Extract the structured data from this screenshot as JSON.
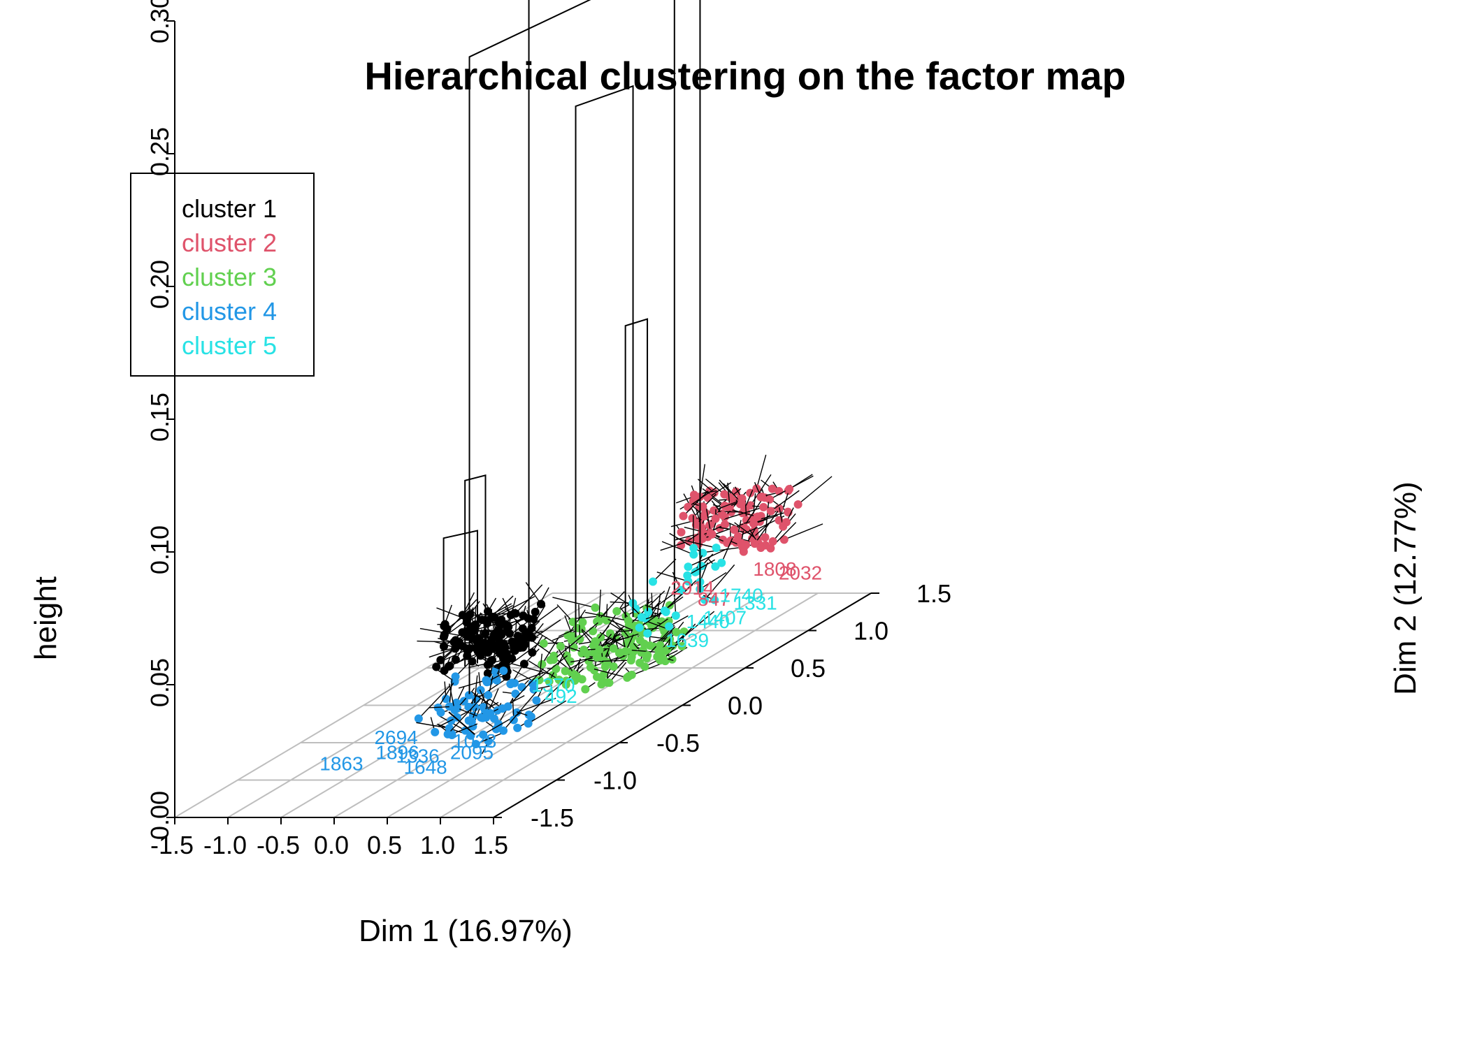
{
  "chart_data": {
    "type": "scatter",
    "subtype": "3d-dendrogram-on-factor-map",
    "title": "Hierarchical clustering on the factor map",
    "xlabel": "Dim 1 (16.97%)",
    "ylabel": "Dim 2 (12.77%)",
    "zlabel": "height",
    "xlim": [
      -1.5,
      1.5
    ],
    "ylim": [
      -1.5,
      1.5
    ],
    "zlim": [
      0,
      0.3
    ],
    "x_ticks": [
      "-1.5",
      "-1.0",
      "-0.5",
      "0.0",
      "0.5",
      "1.0",
      "1.5"
    ],
    "y_ticks": [
      "-1.5",
      "-1.0",
      "-0.5",
      "0.0",
      "0.5",
      "1.0",
      "1.5"
    ],
    "z_ticks": [
      "0.00",
      "0.05",
      "0.10",
      "0.15",
      "0.20",
      "0.25",
      "0.30"
    ],
    "grid": true,
    "legend_position": "top-left",
    "colors": {
      "cluster 1": "#000000",
      "cluster 2": "#DF536B",
      "cluster 3": "#61D04F",
      "cluster 4": "#2297E6",
      "cluster 5": "#28E2E5",
      "grid": "#BEBEBE",
      "tree": "#000000"
    },
    "series": [
      {
        "name": "cluster 1",
        "center": [
          -0.2,
          -0.1
        ],
        "spread": [
          0.35,
          0.18
        ],
        "n": 120
      },
      {
        "name": "cluster 2",
        "center": [
          0.7,
          1.1
        ],
        "spread": [
          0.45,
          0.15
        ],
        "n": 110
      },
      {
        "name": "cluster 3",
        "center": [
          0.55,
          0.25
        ],
        "spread": [
          0.45,
          0.25
        ],
        "n": 140
      },
      {
        "name": "cluster 4",
        "center": [
          0.75,
          -1.0
        ],
        "spread": [
          0.35,
          0.25
        ],
        "n": 70
      },
      {
        "name": "cluster 5",
        "center": [
          1.25,
          0.1
        ],
        "spread": [
          0.15,
          0.35
        ],
        "n": 30
      }
    ],
    "merges": [
      {
        "left": [
          0.08,
          -0.02
        ],
        "right": [
          0.72,
          0.8
        ],
        "height": 0.3
      },
      {
        "left": [
          0.16,
          -0.56
        ],
        "right": [
          0.55,
          0.74
        ],
        "height": 0.26
      },
      {
        "left": [
          0.26,
          0.2
        ],
        "right": [
          0.48,
          0.47
        ],
        "height": 0.22
      },
      {
        "left": [
          0.42,
          0.46
        ],
        "right": [
          0.52,
          0.55
        ],
        "height": 0.13
      },
      {
        "left": [
          -0.32,
          -0.19
        ],
        "right": [
          -0.21,
          -0.12
        ],
        "height": 0.09
      },
      {
        "left": [
          -0.45,
          -0.25
        ],
        "right": [
          -0.25,
          -0.15
        ],
        "height": 0.07
      },
      {
        "left": [
          0.25,
          -0.8
        ],
        "right": [
          0.85,
          -1.1
        ],
        "height": 0.02
      }
    ],
    "point_labels": [
      {
        "text": "2914",
        "x": 0.47,
        "y": 0.95,
        "series": "cluster 2"
      },
      {
        "text": "1808",
        "x": 0.95,
        "y": 1.2,
        "series": "cluster 2"
      },
      {
        "text": "2032",
        "x": 1.25,
        "y": 1.15,
        "series": "cluster 2"
      },
      {
        "text": "847",
        "x": 0.85,
        "y": 0.8,
        "series": "cluster 2"
      },
      {
        "text": "1740",
        "x": 1.05,
        "y": 0.85,
        "series": "cluster 5"
      },
      {
        "text": "1331",
        "x": 1.3,
        "y": 0.75,
        "series": "cluster 5"
      },
      {
        "text": "1407",
        "x": 1.25,
        "y": 0.55,
        "series": "cluster 5"
      },
      {
        "text": "1440",
        "x": 1.15,
        "y": 0.5,
        "series": "cluster 5"
      },
      {
        "text": "1639",
        "x": 1.25,
        "y": 0.25,
        "series": "cluster 5"
      },
      {
        "text": "1370",
        "x": 0.7,
        "y": -0.35,
        "series": "cluster 5"
      },
      {
        "text": "492",
        "x": 0.95,
        "y": -0.5,
        "series": "cluster 5"
      },
      {
        "text": "2694",
        "x": 0.05,
        "y": -1.05,
        "series": "cluster 4"
      },
      {
        "text": "1863",
        "x": -0.05,
        "y": -1.4,
        "series": "cluster 4"
      },
      {
        "text": "1896",
        "x": 0.3,
        "y": -1.25,
        "series": "cluster 4"
      },
      {
        "text": "1336",
        "x": 0.55,
        "y": -1.3,
        "series": "cluster 4"
      },
      {
        "text": "1028",
        "x": 0.85,
        "y": -1.1,
        "series": "cluster 4"
      },
      {
        "text": "1648",
        "x": 0.8,
        "y": -1.45,
        "series": "cluster 4"
      },
      {
        "text": "2095",
        "x": 1.0,
        "y": -1.25,
        "series": "cluster 4"
      }
    ]
  }
}
